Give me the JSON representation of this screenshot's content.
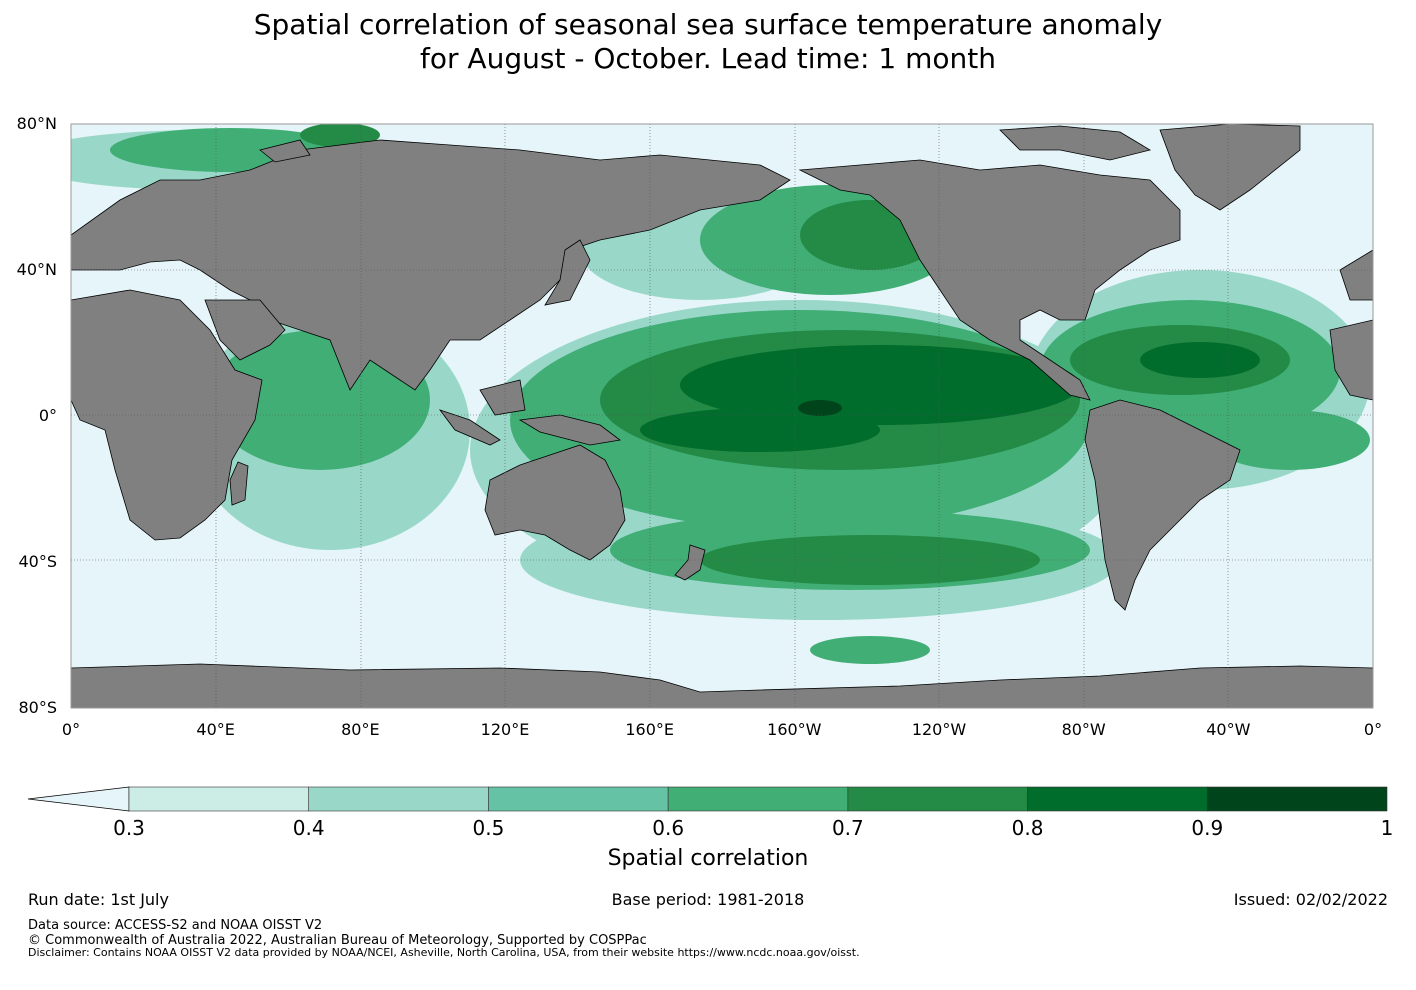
{
  "title": {
    "line1": "Spatial correlation of seasonal sea surface temperature anomaly",
    "line2": "for August - October. Lead time: 1 month"
  },
  "map": {
    "lat_labels": [
      "80°N",
      "40°N",
      "0°",
      "40°S",
      "80°S"
    ],
    "lat_values": [
      80,
      40,
      0,
      -40,
      -80
    ],
    "lon_labels": [
      "0°",
      "40°E",
      "80°E",
      "120°E",
      "160°E",
      "160°W",
      "120°W",
      "80°W",
      "40°W",
      "0°"
    ],
    "lon_values": [
      0,
      40,
      80,
      120,
      160,
      200,
      240,
      280,
      320,
      360
    ],
    "colors": {
      "ocean_low": "#e6f5f9",
      "land": "#808080",
      "grid": "#555555",
      "coast": "#000000"
    }
  },
  "colorbar": {
    "ticks": [
      "0.3",
      "0.4",
      "0.5",
      "0.6",
      "0.7",
      "0.8",
      "0.9",
      "1"
    ],
    "title": "Spatial correlation",
    "colors": [
      "#e6f5f9",
      "#ccece6",
      "#99d8c9",
      "#66c2a4",
      "#41ae76",
      "#238b45",
      "#006d2c",
      "#00441b"
    ]
  },
  "footer": {
    "run_date": "Run date: 1st July",
    "base_period": "Base period: 1981-2018",
    "issued": "Issued: 02/02/2022",
    "data_source": "Data source: ACCESS-S2 and NOAA OISST V2",
    "copyright": "© Commonwealth of Australia 2022, Australian Bureau of Meteorology, Supported by COSPPac",
    "disclaimer": "Disclaimer: Contains NOAA OISST V2 data provided by NOAA/NCEI, Asheville, North Carolina, USA, from their website https://www.ncdc.noaa.gov/oisst."
  }
}
